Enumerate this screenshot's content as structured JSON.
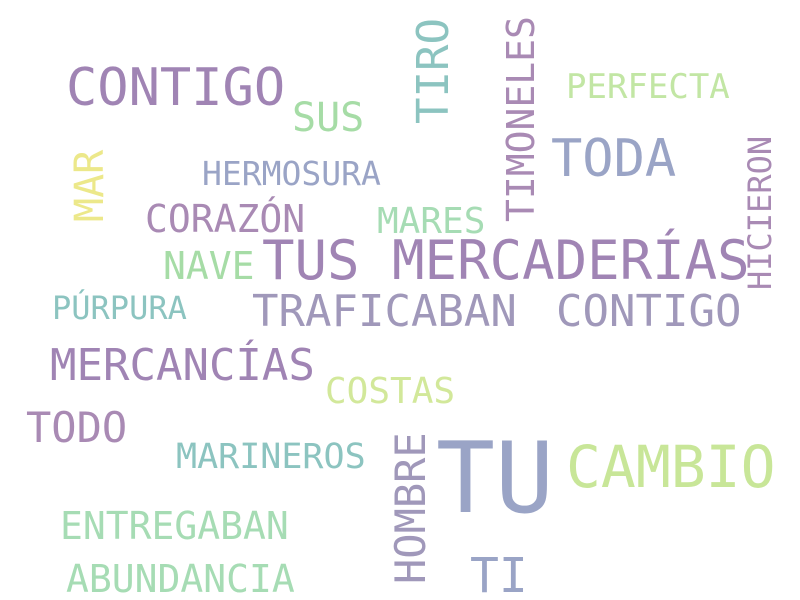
{
  "words": [
    {
      "text": "CONTIGO",
      "color": "#a084b4"
    },
    {
      "text": "SUS",
      "color": "#a6dca6"
    },
    {
      "text": "TIRO",
      "color": "#8cc4c0"
    },
    {
      "text": "TIMONELES",
      "color": "#a98ab4"
    },
    {
      "text": "PERFECTA",
      "color": "#c2e6a4"
    },
    {
      "text": "TODA",
      "color": "#9aa4c6"
    },
    {
      "text": "HICIERON",
      "color": "#a98ab4"
    },
    {
      "text": "MAR",
      "color": "#ece88a"
    },
    {
      "text": "HERMOSURA",
      "color": "#9aa4c6"
    },
    {
      "text": "CORAZÓN",
      "color": "#a98ab4"
    },
    {
      "text": "MARES",
      "color": "#a6dcb4"
    },
    {
      "text": "NAVE",
      "color": "#a6dca6"
    },
    {
      "text": "TUS MERCADERÍAS",
      "color": "#a084b4"
    },
    {
      "text": "PÚRPURA",
      "color": "#8cc4c0"
    },
    {
      "text": "TRAFICABAN",
      "color": "#a098ba"
    },
    {
      "text": "CONTIGO",
      "color": "#a098ba"
    },
    {
      "text": "MERCANCÍAS",
      "color": "#a084b4"
    },
    {
      "text": "COSTAS",
      "color": "#d2e89a"
    },
    {
      "text": "TODO",
      "color": "#a98ab4"
    },
    {
      "text": "HOMBRE",
      "color": "#a098ba"
    },
    {
      "text": "TU",
      "color": "#9aa4c6"
    },
    {
      "text": "CAMBIO",
      "color": "#c8e698"
    },
    {
      "text": "MARINEROS",
      "color": "#8cc4c0"
    },
    {
      "text": "ENTREGABAN",
      "color": "#a6dcb4"
    },
    {
      "text": "TI",
      "color": "#9aa4c6"
    },
    {
      "text": "ABUNDANCIA",
      "color": "#a6dcb4"
    }
  ]
}
